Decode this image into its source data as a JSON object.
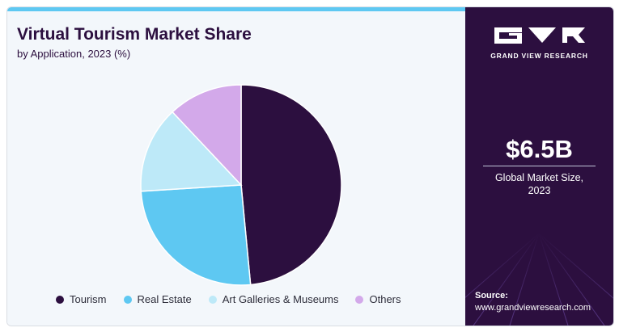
{
  "header": {
    "title": "Virtual Tourism Market Share",
    "subtitle": "by Application, 2023 (%)"
  },
  "chart_data": {
    "type": "pie",
    "categories": [
      "Tourism",
      "Real Estate",
      "Art Galleries & Museums",
      "Others"
    ],
    "values": [
      48.5,
      25.5,
      14.0,
      12.0
    ],
    "colors": [
      "#2c0f3f",
      "#5ec8f2",
      "#bde9f8",
      "#d3a9ea"
    ],
    "legend_position": "bottom",
    "start_angle_deg": 0,
    "direction": "clockwise"
  },
  "brand": {
    "name": "GRAND VIEW RESEARCH",
    "logo_icon": "gvr-logo-icon"
  },
  "highlight": {
    "value": "$6.5B",
    "caption_line1": "Global Market Size,",
    "caption_line2": "2023"
  },
  "source": {
    "label": "Source:",
    "url": "www.grandviewresearch.com"
  },
  "colors": {
    "panel_dark": "#2c0f3f",
    "accent": "#5ec8f2"
  }
}
